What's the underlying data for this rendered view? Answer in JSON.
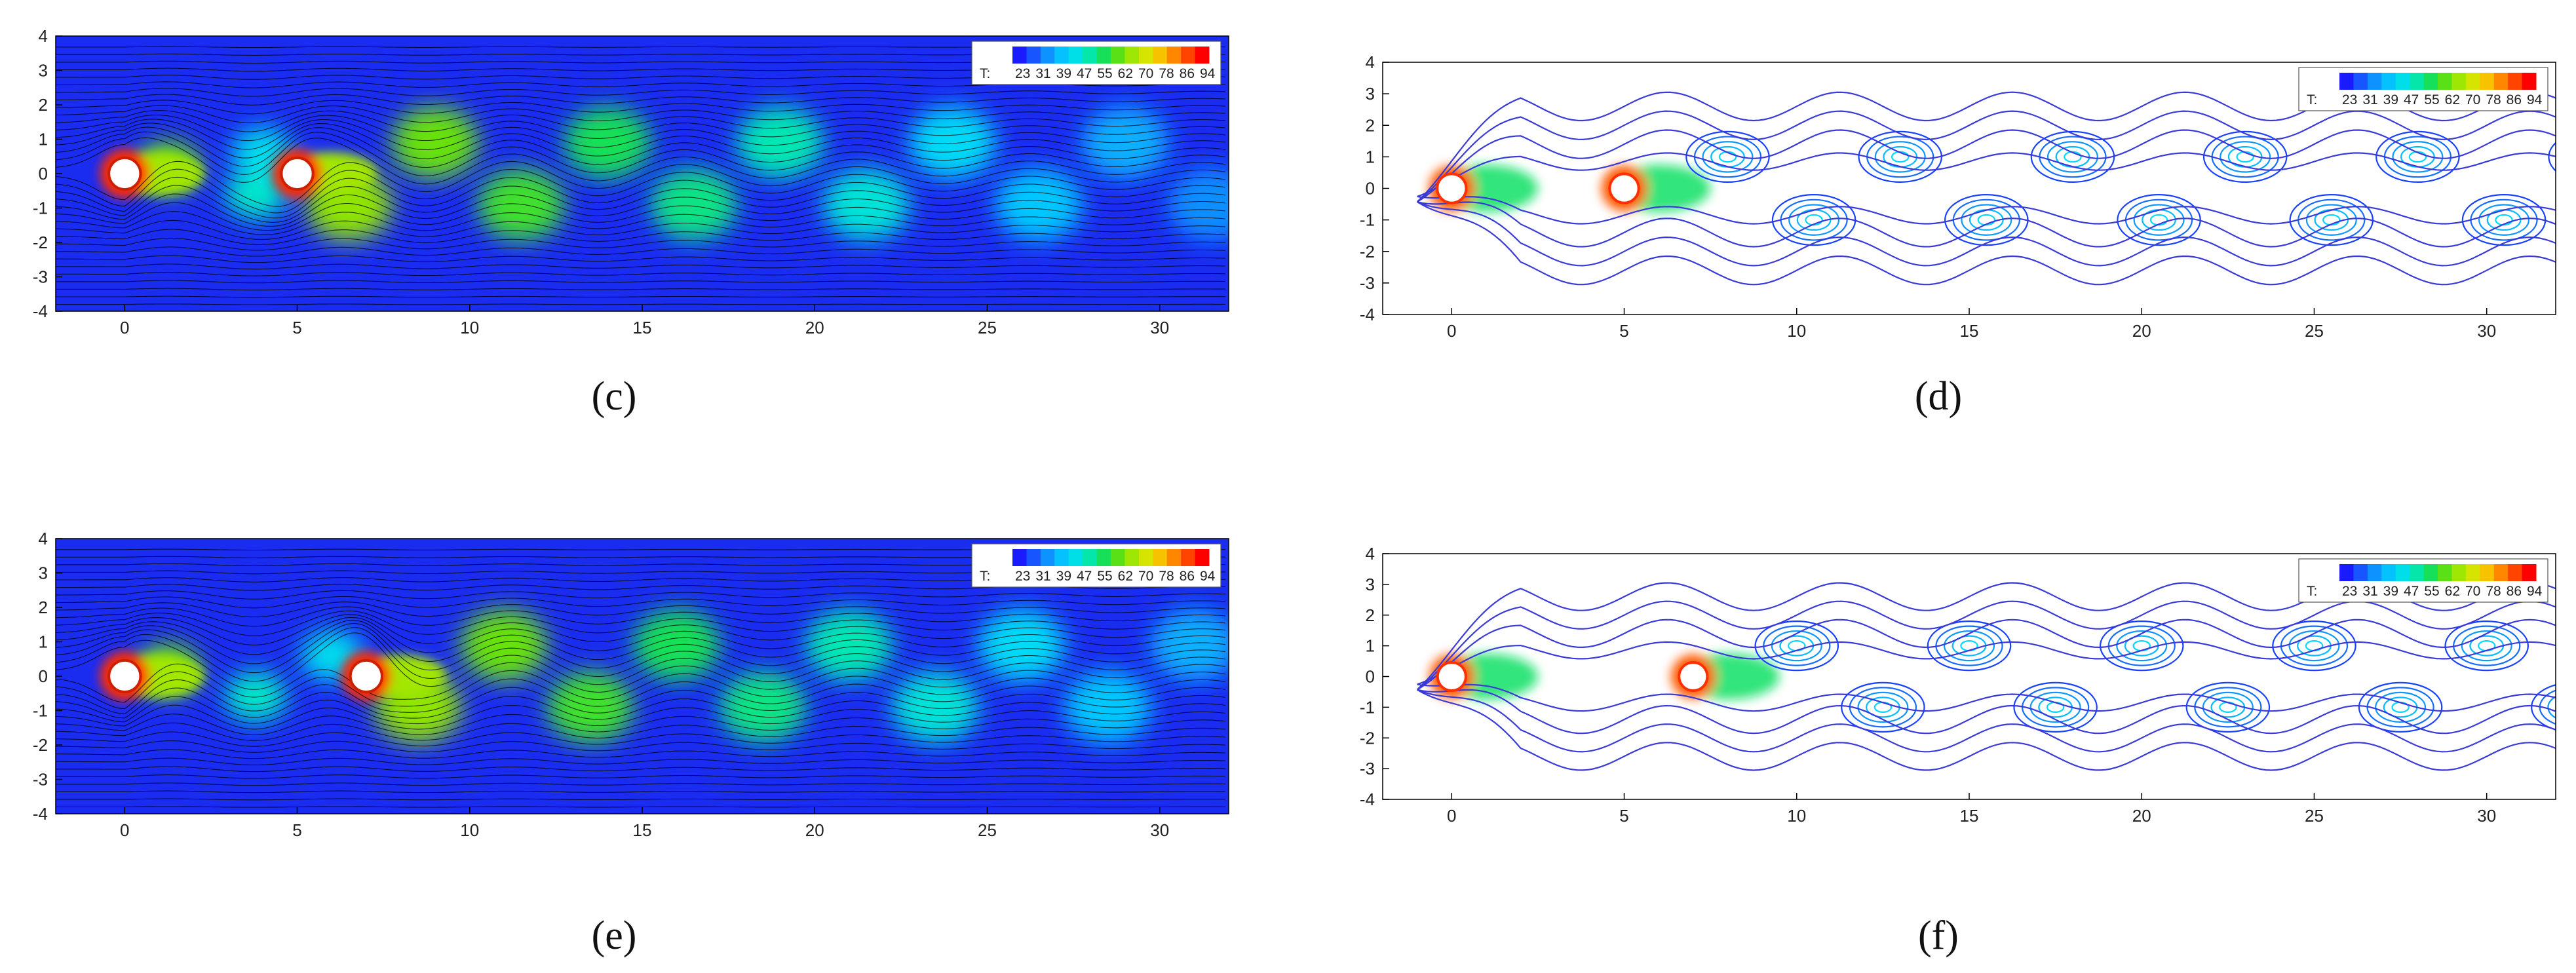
{
  "chart_data": [
    {
      "panel": "c",
      "type": "heatmap",
      "style": "filled",
      "cylinders_x": [
        0,
        5
      ],
      "xlim": [
        -2,
        32
      ],
      "ylim": [
        -4,
        4
      ],
      "xticks": [
        0,
        5,
        10,
        15,
        20,
        25,
        30
      ],
      "yticks": [
        -4,
        -3,
        -2,
        -1,
        0,
        1,
        2,
        3,
        4
      ],
      "legend": {
        "title": "T:",
        "values": [
          "23",
          "31",
          "39",
          "47",
          "55",
          "62",
          "70",
          "78",
          "86",
          "94"
        ],
        "placement": "top-right"
      }
    },
    {
      "panel": "d",
      "type": "line",
      "style": "contour",
      "cylinders_x": [
        0,
        5
      ],
      "xlim": [
        -2,
        32
      ],
      "ylim": [
        -4,
        4
      ],
      "xticks": [
        0,
        5,
        10,
        15,
        20,
        25,
        30
      ],
      "yticks": [
        -4,
        -3,
        -2,
        -1,
        0,
        1,
        2,
        3,
        4
      ],
      "legend": {
        "title": "T:",
        "values": [
          "23",
          "31",
          "39",
          "47",
          "55",
          "62",
          "70",
          "78",
          "86",
          "94"
        ],
        "placement": "top-right"
      }
    },
    {
      "panel": "e",
      "type": "heatmap",
      "style": "filled",
      "cylinders_x": [
        0,
        7
      ],
      "xlim": [
        -2,
        32
      ],
      "ylim": [
        -4,
        4
      ],
      "xticks": [
        0,
        5,
        10,
        15,
        20,
        25,
        30
      ],
      "yticks": [
        -4,
        -3,
        -2,
        -1,
        0,
        1,
        2,
        3,
        4
      ],
      "legend": {
        "title": "T:",
        "values": [
          "23",
          "31",
          "39",
          "47",
          "55",
          "62",
          "70",
          "78",
          "86",
          "94"
        ],
        "placement": "top-right"
      }
    },
    {
      "panel": "f",
      "type": "line",
      "style": "contour",
      "cylinders_x": [
        0,
        7
      ],
      "xlim": [
        -2,
        32
      ],
      "ylim": [
        -4,
        4
      ],
      "xticks": [
        0,
        5,
        10,
        15,
        20,
        25,
        30
      ],
      "yticks": [
        -4,
        -3,
        -2,
        -1,
        0,
        1,
        2,
        3,
        4
      ],
      "legend": {
        "title": "T:",
        "values": [
          "23",
          "31",
          "39",
          "47",
          "55",
          "62",
          "70",
          "78",
          "86",
          "94"
        ],
        "placement": "top-right"
      }
    }
  ],
  "labels": {
    "c": "(c)",
    "d": "(d)",
    "e": "(e)",
    "f": "(f)"
  },
  "colorscale": [
    "#1a1aff",
    "#1560ff",
    "#0aa8ff",
    "#00d8ff",
    "#00e8c0",
    "#10e060",
    "#60e010",
    "#b0e800",
    "#f0e000",
    "#ffa000",
    "#ff5000",
    "#ff0000"
  ]
}
